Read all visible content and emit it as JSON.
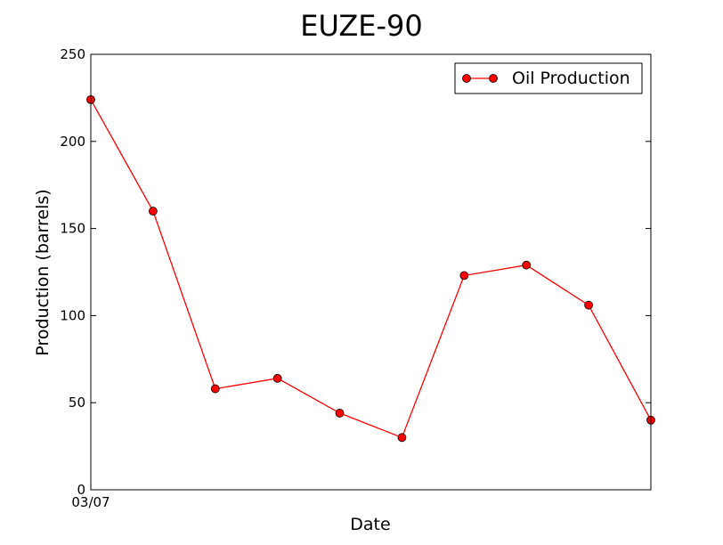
{
  "chart_data": {
    "type": "line",
    "title": "EUZE-90",
    "xlabel": "Date",
    "ylabel": "Production (barrels)",
    "x_tick_labels": [
      "03/07"
    ],
    "y_ticks": [
      0,
      50,
      100,
      150,
      200,
      250
    ],
    "ylim": [
      0,
      250
    ],
    "grid": false,
    "legend_position": "top-right",
    "series": [
      {
        "name": "Oil Production",
        "color": "#ff0000",
        "marker": "circle",
        "values": [
          224,
          160,
          58,
          64,
          44,
          30,
          123,
          129,
          106,
          40
        ]
      }
    ]
  }
}
